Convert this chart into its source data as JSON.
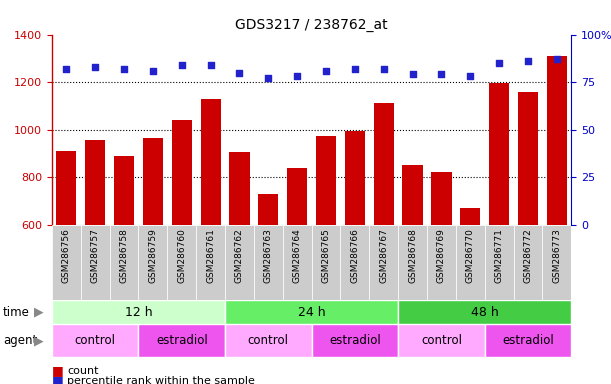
{
  "title": "GDS3217 / 238762_at",
  "samples": [
    "GSM286756",
    "GSM286757",
    "GSM286758",
    "GSM286759",
    "GSM286760",
    "GSM286761",
    "GSM286762",
    "GSM286763",
    "GSM286764",
    "GSM286765",
    "GSM286766",
    "GSM286767",
    "GSM286768",
    "GSM286769",
    "GSM286770",
    "GSM286771",
    "GSM286772",
    "GSM286773"
  ],
  "counts": [
    912,
    955,
    890,
    965,
    1040,
    1130,
    905,
    730,
    838,
    975,
    993,
    1110,
    852,
    822,
    670,
    1195,
    1158,
    1310
  ],
  "percentile_ranks": [
    82,
    83,
    82,
    81,
    84,
    84,
    80,
    77,
    78,
    81,
    82,
    82,
    79,
    79,
    78,
    85,
    86,
    87
  ],
  "bar_color": "#cc0000",
  "dot_color": "#2222cc",
  "ylim_left": [
    600,
    1400
  ],
  "ylim_right": [
    0,
    100
  ],
  "yticks_left": [
    600,
    800,
    1000,
    1200,
    1400
  ],
  "yticks_right": [
    0,
    25,
    50,
    75,
    100
  ],
  "yticklabels_right": [
    "0",
    "25",
    "50",
    "75",
    "100%"
  ],
  "grid_values": [
    800,
    1000,
    1200
  ],
  "time_groups": [
    {
      "label": "12 h",
      "start": 0,
      "end": 6,
      "color": "#ccffcc"
    },
    {
      "label": "24 h",
      "start": 6,
      "end": 12,
      "color": "#66ee66"
    },
    {
      "label": "48 h",
      "start": 12,
      "end": 18,
      "color": "#44cc44"
    }
  ],
  "agent_groups": [
    {
      "label": "control",
      "start": 0,
      "end": 3,
      "color": "#ffaaff"
    },
    {
      "label": "estradiol",
      "start": 3,
      "end": 6,
      "color": "#ee55ee"
    },
    {
      "label": "control",
      "start": 6,
      "end": 9,
      "color": "#ffaaff"
    },
    {
      "label": "estradiol",
      "start": 9,
      "end": 12,
      "color": "#ee55ee"
    },
    {
      "label": "control",
      "start": 12,
      "end": 15,
      "color": "#ffaaff"
    },
    {
      "label": "estradiol",
      "start": 15,
      "end": 18,
      "color": "#ee55ee"
    }
  ],
  "legend_count_label": "count",
  "legend_pct_label": "percentile rank within the sample",
  "time_label": "time",
  "agent_label": "agent",
  "tick_color_left": "#cc0000",
  "tick_color_right": "#0000cc",
  "label_color_left": "#cc0000",
  "xtick_bg_color": "#cccccc",
  "background_color": "#ffffff"
}
